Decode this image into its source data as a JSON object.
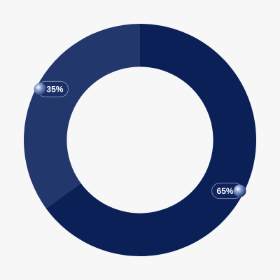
{
  "chart_data": {
    "type": "pie",
    "values": [
      65,
      35
    ],
    "value_labels": [
      "65%",
      "35%"
    ],
    "colors": [
      "#0b2057",
      "#22376b"
    ],
    "hole": 0.63,
    "start_angle": 0,
    "direction": "clockwise"
  }
}
